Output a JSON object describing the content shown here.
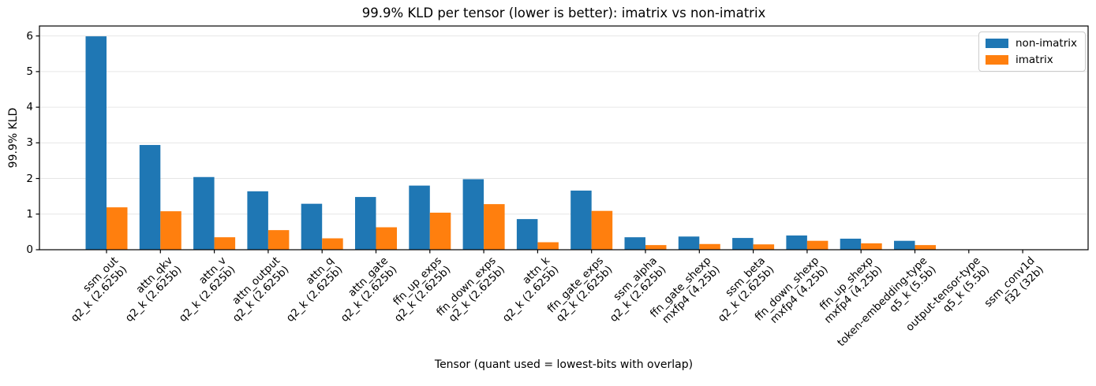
{
  "chart_data": {
    "type": "bar",
    "title": "99.9% KLD per tensor (lower is better): imatrix vs non-imatrix",
    "xlabel": "Tensor (quant used = lowest-bits with overlap)",
    "ylabel": "99.9% KLD",
    "ylim": [
      0,
      6.28
    ],
    "yticks": [
      0,
      1,
      2,
      3,
      4,
      5,
      6
    ],
    "grid": true,
    "legend_position": "upper right",
    "categories": [
      {
        "tensor": "ssm_out",
        "quant": "q2_k (2.625b)"
      },
      {
        "tensor": "attn_qkv",
        "quant": "q2_k (2.625b)"
      },
      {
        "tensor": "attn_v",
        "quant": "q2_k (2.625b)"
      },
      {
        "tensor": "attn_output",
        "quant": "q2_k (2.625b)"
      },
      {
        "tensor": "attn_q",
        "quant": "q2_k (2.625b)"
      },
      {
        "tensor": "attn_gate",
        "quant": "q2_k (2.625b)"
      },
      {
        "tensor": "ffn_up_exps",
        "quant": "q2_k (2.625b)"
      },
      {
        "tensor": "ffn_down_exps",
        "quant": "q2_k (2.625b)"
      },
      {
        "tensor": "attn_k",
        "quant": "q2_k (2.625b)"
      },
      {
        "tensor": "ffn_gate_exps",
        "quant": "q2_k (2.625b)"
      },
      {
        "tensor": "ssm_alpha",
        "quant": "q2_k (2.625b)"
      },
      {
        "tensor": "ffn_gate_shexp",
        "quant": "mxfp4 (4.25b)"
      },
      {
        "tensor": "ssm_beta",
        "quant": "q2_k (2.625b)"
      },
      {
        "tensor": "ffn_down_shexp",
        "quant": "mxfp4 (4.25b)"
      },
      {
        "tensor": "ffn_up_shexp",
        "quant": "mxfp4 (4.25b)"
      },
      {
        "tensor": "token-embedding-type",
        "quant": "q5_k (5.5b)"
      },
      {
        "tensor": "output-tensor-type",
        "quant": "q5_k (5.5b)"
      },
      {
        "tensor": "ssm_conv1d",
        "quant": "f32 (32b)"
      }
    ],
    "series": [
      {
        "name": "non-imatrix",
        "color": "#1f77b4",
        "values": [
          5.99,
          2.94,
          2.04,
          1.64,
          1.29,
          1.48,
          1.8,
          1.98,
          0.86,
          1.66,
          0.35,
          0.37,
          0.33,
          0.4,
          0.31,
          0.25,
          0.01,
          0.0
        ]
      },
      {
        "name": "imatrix",
        "color": "#ff7f0e",
        "values": [
          1.19,
          1.08,
          0.35,
          0.55,
          0.32,
          0.63,
          1.04,
          1.28,
          0.21,
          1.09,
          0.13,
          0.16,
          0.15,
          0.25,
          0.18,
          0.13,
          0.01,
          0.0
        ]
      }
    ]
  }
}
